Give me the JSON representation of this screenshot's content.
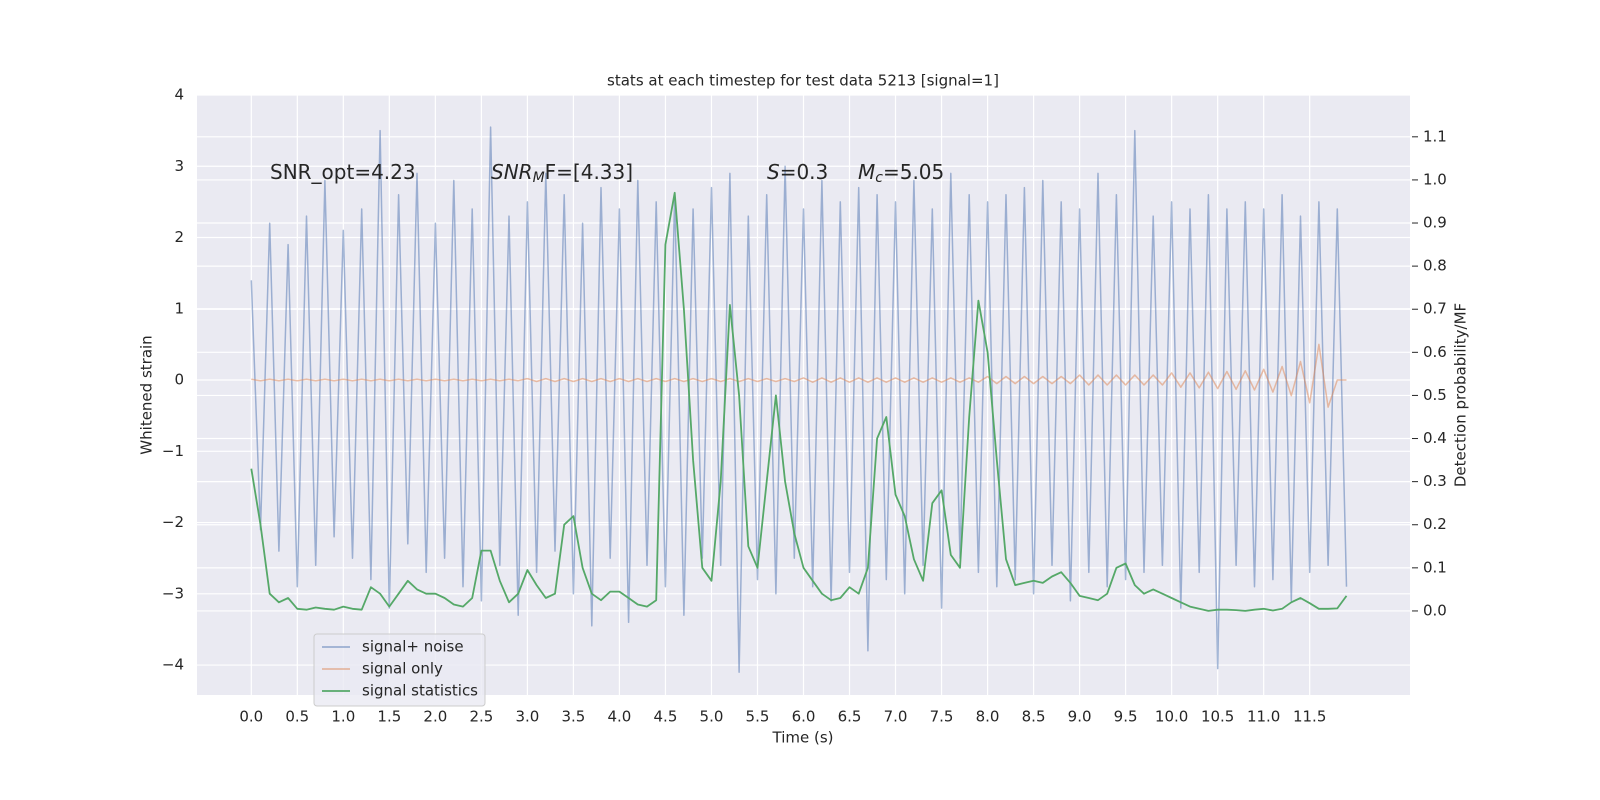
{
  "chart_data": {
    "type": "line",
    "title": "stats at each timestep for test data 5213 [signal=1]",
    "xlabel": "Time (s)",
    "ylabel": "Whitened strain",
    "y2label": "Detection probability/MF",
    "annotations": [
      {
        "text": "SNR_opt=4.23"
      },
      {
        "text": "SNR",
        "sub": "M",
        "tail": "F=[4.33]"
      },
      {
        "text": "S",
        "tail": "=0.3"
      },
      {
        "text": "M",
        "sub": "c",
        "tail": "=5.05"
      }
    ],
    "grid": true,
    "legend": "lower left",
    "xlim": [
      -0.59,
      12.59
    ],
    "ylim": [
      -4.42,
      4
    ],
    "y2lim": [
      -0.195,
      1.197
    ],
    "xticks": [
      {
        "value": 0,
        "label": "0.0"
      },
      0.5,
      {
        "value": 1,
        "label": "1.0"
      },
      1.5,
      {
        "value": 2,
        "label": "2.0"
      },
      2.5,
      {
        "value": 3,
        "label": "3.0"
      },
      3.5,
      {
        "value": 4,
        "label": "4.0"
      },
      4.5,
      {
        "value": 5,
        "label": "5.0"
      },
      5.5,
      {
        "value": 6,
        "label": "6.0"
      },
      6.5,
      {
        "value": 7,
        "label": "7.0"
      },
      7.5,
      {
        "value": 8,
        "label": "8.0"
      },
      8.5,
      {
        "value": 9,
        "label": "9.0"
      },
      9.5,
      {
        "value": 10,
        "label": "10.0"
      },
      10.5,
      {
        "value": 11,
        "label": "11.0"
      },
      11.5
    ],
    "yticks": [
      {
        "value": -4,
        "label": "−4"
      },
      {
        "value": -3,
        "label": "−3"
      },
      {
        "value": -2,
        "label": "−2"
      },
      {
        "value": -1,
        "label": "−1"
      },
      0,
      1,
      2,
      3,
      4
    ],
    "y2ticks": [
      {
        "value": 0,
        "label": "0.0"
      },
      0.1,
      0.2,
      0.3,
      0.4,
      0.5,
      0.6,
      0.7,
      0.8,
      0.9,
      {
        "value": 1,
        "label": "1.0"
      },
      1.1
    ],
    "x": [
      0,
      0.1,
      0.2,
      0.3,
      0.4,
      0.5,
      0.6,
      0.7,
      0.8,
      0.9,
      1,
      1.1,
      1.2,
      1.3,
      1.4,
      1.5,
      1.6,
      1.7,
      1.8,
      1.9,
      2,
      2.1,
      2.2,
      2.3,
      2.4,
      2.5,
      2.6,
      2.7,
      2.8,
      2.9,
      3,
      3.1,
      3.2,
      3.3,
      3.4,
      3.5,
      3.6,
      3.7,
      3.8,
      3.9,
      4,
      4.1,
      4.2,
      4.3,
      4.4,
      4.5,
      4.6,
      4.7,
      4.8,
      4.9,
      5,
      5.1,
      5.2,
      5.3,
      5.4,
      5.5,
      5.6,
      5.7,
      5.8,
      5.9,
      6,
      6.1,
      6.2,
      6.3,
      6.4,
      6.5,
      6.6,
      6.7,
      6.8,
      6.9,
      7,
      7.1,
      7.2,
      7.3,
      7.4,
      7.5,
      7.6,
      7.7,
      7.8,
      7.9,
      8,
      8.1,
      8.2,
      8.3,
      8.4,
      8.5,
      8.6,
      8.7,
      8.8,
      8.9,
      9,
      9.1,
      9.2,
      9.3,
      9.4,
      9.5,
      9.6,
      9.7,
      9.8,
      9.9,
      10,
      10.1,
      10.2,
      10.3,
      10.4,
      10.5,
      10.6,
      10.7,
      10.8,
      10.9,
      11,
      11.1,
      11.2,
      11.3,
      11.4,
      11.5,
      11.6,
      11.7,
      11.8,
      11.9
    ],
    "series": [
      {
        "name": "signal+ noise",
        "color": "#4c72b0",
        "values": [
          1.4,
          -2.1,
          2.2,
          -2.4,
          1.9,
          -2.9,
          2.3,
          -2.6,
          2.8,
          -2.2,
          2.1,
          -2.5,
          2.4,
          -2.8,
          3.5,
          -3.2,
          2.6,
          -2.3,
          2.9,
          -2.7,
          2.2,
          -2.5,
          2.8,
          -2.9,
          2.4,
          -3.1,
          3.55,
          -2.6,
          2.3,
          -3.3,
          2.5,
          -2.7,
          2.9,
          -2.4,
          2.6,
          -3.0,
          2.2,
          -3.45,
          2.7,
          -2.5,
          2.4,
          -3.4,
          2.8,
          -2.6,
          2.5,
          -2.9,
          2.6,
          -3.3,
          2.4,
          -2.5,
          2.7,
          -2.6,
          2.9,
          -4.1,
          2.3,
          -2.8,
          2.6,
          -3.0,
          3.0,
          -2.5,
          2.4,
          -2.9,
          2.8,
          -3.1,
          2.5,
          -2.7,
          2.7,
          -3.8,
          2.6,
          -2.8,
          2.5,
          -3.0,
          2.8,
          -2.6,
          2.4,
          -3.2,
          2.9,
          -2.5,
          2.6,
          -2.7,
          2.5,
          -2.9,
          2.6,
          -2.8,
          2.7,
          -3.0,
          2.8,
          -2.6,
          2.5,
          -3.1,
          2.4,
          -2.7,
          2.9,
          -2.9,
          2.6,
          -2.8,
          3.5,
          -2.7,
          2.3,
          -2.6,
          2.5,
          -3.2,
          2.4,
          -2.7,
          2.6,
          -4.05,
          2.4,
          -2.6,
          2.5,
          -2.9,
          2.4,
          -2.8,
          2.6,
          -3.1,
          2.3,
          -2.7,
          2.5,
          -2.6,
          2.4,
          -2.9
        ]
      },
      {
        "name": "signal only",
        "color": "#dd8452",
        "values": [
          0.01,
          -0.01,
          0.01,
          -0.01,
          0.01,
          -0.01,
          0.01,
          -0.01,
          0.01,
          -0.01,
          0.01,
          -0.01,
          0.01,
          -0.01,
          0.01,
          -0.01,
          0.01,
          -0.01,
          0.01,
          -0.01,
          0.01,
          -0.01,
          0.01,
          -0.01,
          0.01,
          -0.01,
          0.01,
          -0.01,
          0.01,
          -0.01,
          0.02,
          -0.02,
          0.02,
          -0.02,
          0.02,
          -0.02,
          0.02,
          -0.02,
          0.02,
          -0.02,
          0.02,
          -0.02,
          0.02,
          -0.02,
          0.02,
          -0.02,
          0.02,
          -0.02,
          0.02,
          -0.02,
          0.02,
          -0.02,
          0.02,
          -0.02,
          0.02,
          -0.02,
          0.02,
          -0.02,
          0.02,
          -0.02,
          0.03,
          -0.03,
          0.03,
          -0.03,
          0.03,
          -0.03,
          0.03,
          -0.03,
          0.03,
          -0.03,
          0.03,
          -0.03,
          0.03,
          -0.03,
          0.03,
          -0.03,
          0.03,
          -0.03,
          0.03,
          -0.03,
          0.05,
          -0.05,
          0.05,
          -0.05,
          0.05,
          -0.05,
          0.05,
          -0.05,
          0.05,
          -0.05,
          0.07,
          -0.07,
          0.07,
          -0.07,
          0.07,
          -0.07,
          0.07,
          -0.07,
          0.07,
          -0.07,
          0.1,
          -0.1,
          0.1,
          -0.11,
          0.11,
          -0.12,
          0.12,
          -0.13,
          0.13,
          -0.14,
          0.15,
          -0.17,
          0.19,
          -0.22,
          0.26,
          -0.32,
          0.5,
          -0.38,
          0,
          0
        ]
      },
      {
        "name": "signal statistics",
        "color": "#55a868",
        "axis": "y2",
        "values": [
          0.33,
          0.2,
          0.04,
          0.02,
          0.03,
          0.005,
          0.003,
          0.008,
          0.005,
          0.003,
          0.01,
          0.005,
          0.003,
          0.055,
          0.04,
          0.01,
          0.04,
          0.07,
          0.05,
          0.04,
          0.04,
          0.03,
          0.015,
          0.01,
          0.03,
          0.14,
          0.14,
          0.07,
          0.02,
          0.04,
          0.095,
          0.06,
          0.03,
          0.04,
          0.2,
          0.22,
          0.1,
          0.04,
          0.025,
          0.045,
          0.045,
          0.03,
          0.015,
          0.01,
          0.025,
          0.85,
          0.97,
          0.7,
          0.35,
          0.1,
          0.07,
          0.3,
          0.71,
          0.5,
          0.15,
          0.1,
          0.3,
          0.5,
          0.3,
          0.18,
          0.1,
          0.07,
          0.04,
          0.025,
          0.03,
          0.055,
          0.04,
          0.1,
          0.4,
          0.45,
          0.27,
          0.22,
          0.12,
          0.07,
          0.25,
          0.28,
          0.13,
          0.1,
          0.45,
          0.72,
          0.6,
          0.35,
          0.12,
          0.06,
          0.065,
          0.07,
          0.065,
          0.08,
          0.09,
          0.065,
          0.035,
          0.03,
          0.025,
          0.04,
          0.1,
          0.11,
          0.06,
          0.04,
          0.05,
          0.04,
          0.03,
          0.02,
          0.01,
          0.005,
          0,
          0.003,
          0.003,
          0.002,
          0,
          0.003,
          0.005,
          0.001,
          0.005,
          0.02,
          0.03,
          0.018,
          0.005,
          0.005,
          0.006,
          0.035
        ]
      }
    ]
  }
}
